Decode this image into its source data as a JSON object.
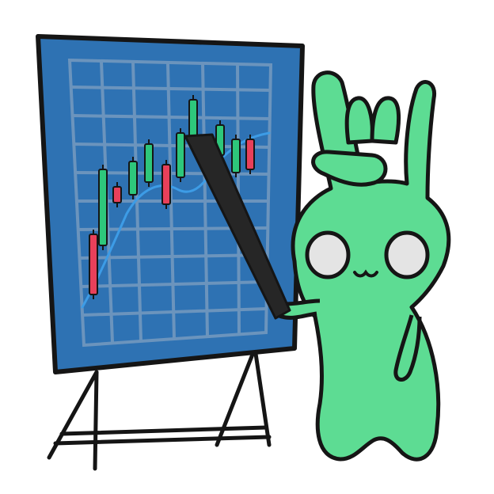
{
  "colors": {
    "background": "#ffffff",
    "board": "#2e72b3",
    "grid": "#6b94bd",
    "outline": "#151515",
    "candle_up": "#2ec77b",
    "candle_down": "#e8405a",
    "trend_line": "#3d9ce6",
    "mascot": "#5ddc93",
    "eye": "#e4e4e4",
    "pointer": "#262626"
  },
  "illustration": {
    "board_icon": "chart-board-icon",
    "easel_icon": "easel-icon",
    "mascot_icon": "green-mascot-icon",
    "pointer_icon": "pointer-stick-icon",
    "hand_gesture": "rock-on-hand-icon"
  },
  "chart_data": {
    "type": "candlestick",
    "candles": [
      {
        "direction": "down"
      },
      {
        "direction": "up"
      },
      {
        "direction": "down"
      },
      {
        "direction": "up"
      },
      {
        "direction": "up"
      },
      {
        "direction": "down"
      },
      {
        "direction": "up"
      },
      {
        "direction": "up"
      },
      {
        "direction": "down"
      },
      {
        "direction": "up"
      },
      {
        "direction": "up"
      },
      {
        "direction": "down"
      }
    ],
    "overlay": "moving-average-line",
    "grid": true,
    "axis_labels": "none"
  }
}
